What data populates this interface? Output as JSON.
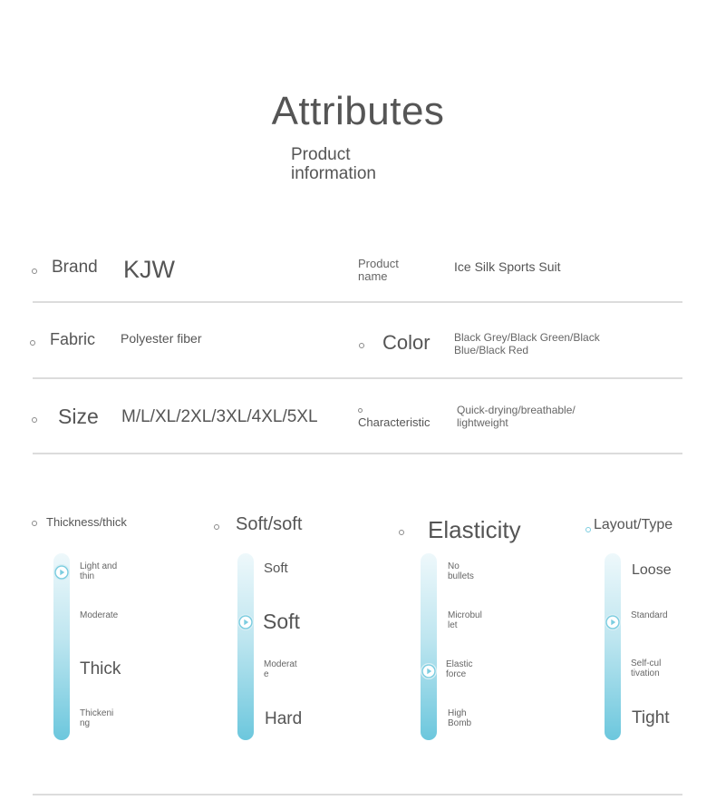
{
  "header": {
    "title": "Attributes",
    "subtitle": "Product\ninformation"
  },
  "attributes": {
    "brand_label": "Brand",
    "brand_value": "KJW",
    "product_name_label": "Product\nname",
    "product_name_value": "Ice Silk Sports Suit",
    "fabric_label": "Fabric",
    "fabric_value": "Polyester fiber",
    "color_label": "Color",
    "color_value": "Black Grey/Black Green/Black\nBlue/Black Red",
    "size_label": "Size",
    "size_value": "M/L/XL/2XL/3XL/4XL/5XL",
    "characteristic_label": "Characteristic",
    "characteristic_value": "Quick-drying/breathable/\nlightweight"
  },
  "scales": [
    {
      "title": "Thickness/thick",
      "levels": [
        "Light and\nthin",
        "Moderate",
        "Thick",
        "Thickeni\nng"
      ],
      "selected_index": 0
    },
    {
      "title": "Soft/soft",
      "levels": [
        "Soft",
        "Soft",
        "Moderat\ne",
        "Hard"
      ],
      "selected_index": 1
    },
    {
      "title": "Elasticity",
      "levels": [
        "No\nbullets",
        "Microbul\nlet",
        "Elastic\nforce",
        "High\nBomb"
      ],
      "selected_index": 2
    },
    {
      "title": "Layout/Type",
      "levels": [
        "Loose",
        "Standard",
        "Self-cul\ntivation",
        "Tight"
      ],
      "selected_index": 1
    }
  ],
  "colors": {
    "accent": "#6cc7dd",
    "text": "#555555",
    "divider": "#dcdcdc"
  }
}
